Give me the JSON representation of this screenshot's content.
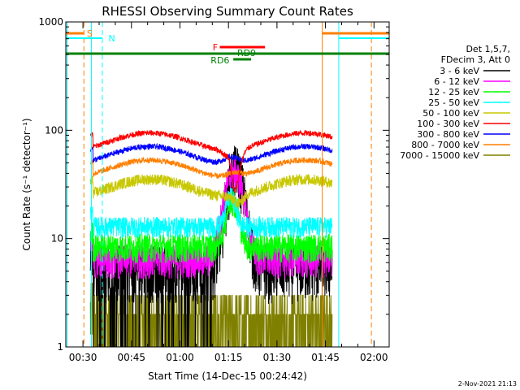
{
  "chart_data": {
    "type": "line",
    "title": "RHESSI Observing Summary Count Rates",
    "xlabel": "Start Time (14-Dec-15 00:24:42)",
    "ylabel": "Count Rate (s⁻¹ detector⁻¹)",
    "y_scale": "log",
    "ylim": [
      1,
      1000
    ],
    "xlim_minutes": [
      0,
      100
    ],
    "y_ticks": [
      "1",
      "10",
      "100",
      "1000"
    ],
    "x_ticks": [
      {
        "label": "00:30",
        "t": 5.3
      },
      {
        "label": "00:45",
        "t": 20.3
      },
      {
        "label": "01:00",
        "t": 35.3
      },
      {
        "label": "01:15",
        "t": 50.3
      },
      {
        "label": "01:30",
        "t": 65.3
      },
      {
        "label": "01:45",
        "t": 80.3
      },
      {
        "label": "02:00",
        "t": 95.3
      }
    ],
    "legend_header": [
      "Det 1,5,7,",
      "FDecim 3, Att 0"
    ],
    "series": [
      {
        "name": "3 - 6 keV",
        "color": "#000000",
        "base": 5.5
      },
      {
        "name": "6 - 12 keV",
        "color": "#ff00ff",
        "base": 6.5
      },
      {
        "name": "12 - 25 keV",
        "color": "#00ff00",
        "base": 8.5
      },
      {
        "name": "25 - 50 keV",
        "color": "#00ffff",
        "base": 13
      },
      {
        "name": "50 - 100 keV",
        "color": "#c8c800",
        "base": 30
      },
      {
        "name": "100 - 300 keV",
        "color": "#ff0000",
        "base": 80
      },
      {
        "name": "300 - 800 keV",
        "color": "#0000ff",
        "base": 60
      },
      {
        "name": "800 - 7000 keV",
        "color": "#ff7f00",
        "base": 45
      },
      {
        "name": "7000 - 15000 keV",
        "color": "#808000",
        "base": 2
      }
    ],
    "annotations": {
      "saa": {
        "label": "S",
        "color": "#ff7f00"
      },
      "night": {
        "label": "N",
        "color": "#00ffff"
      },
      "flare": {
        "label": "F",
        "color": "#ff0000"
      },
      "rd6": {
        "label": "RD6",
        "color": "#008000"
      },
      "rd9": {
        "label": "RD9",
        "color": "#008000"
      }
    },
    "footer": "2-Nov-2021 21:13"
  }
}
